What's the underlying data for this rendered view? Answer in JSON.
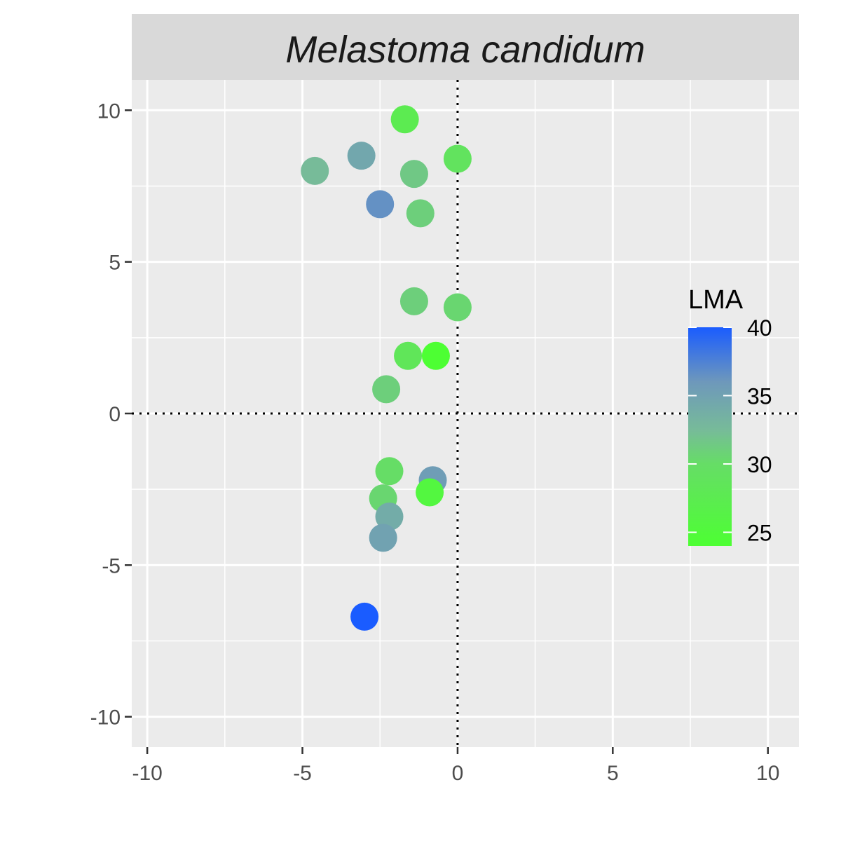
{
  "chart_data": {
    "type": "scatter",
    "title": "Melastoma candidum",
    "xlabel": "",
    "ylabel": "",
    "xlim": [
      -10.5,
      11
    ],
    "ylim": [
      -11,
      11
    ],
    "xticks": [
      -10,
      -5,
      0,
      5,
      10
    ],
    "yticks": [
      -10,
      -5,
      0,
      5,
      10
    ],
    "xtick_labels": [
      "-10",
      "-5",
      "0",
      "5",
      "10"
    ],
    "ytick_labels": [
      "-10",
      "-5",
      "0",
      "5",
      "10"
    ],
    "grid": true,
    "reference_lines": {
      "x": 0,
      "y": 0,
      "style": "dotted"
    },
    "color_variable": "LMA",
    "color_scale": {
      "low": 24,
      "high": 40,
      "low_color": "#4dff33",
      "mid_color": "#77bb99",
      "high_color": "#1a5cff",
      "breaks": [
        25,
        30,
        35,
        40
      ],
      "break_labels": [
        "25",
        "30",
        "35",
        "40"
      ]
    },
    "legend_position": "right",
    "points": [
      {
        "x": -1.7,
        "y": 9.7,
        "lma": 27.5
      },
      {
        "x": 0.0,
        "y": 8.4,
        "lma": 29.0
      },
      {
        "x": -3.1,
        "y": 8.5,
        "lma": 34.5
      },
      {
        "x": -4.6,
        "y": 8.0,
        "lma": 32.5
      },
      {
        "x": -1.4,
        "y": 7.9,
        "lma": 31.5
      },
      {
        "x": -2.5,
        "y": 6.9,
        "lma": 36.5
      },
      {
        "x": -1.2,
        "y": 6.6,
        "lma": 31.0
      },
      {
        "x": -1.4,
        "y": 3.7,
        "lma": 31.0
      },
      {
        "x": 0.0,
        "y": 3.5,
        "lma": 30.5
      },
      {
        "x": -1.6,
        "y": 1.9,
        "lma": 28.5
      },
      {
        "x": -0.7,
        "y": 1.9,
        "lma": 24.0
      },
      {
        "x": -2.3,
        "y": 0.8,
        "lma": 31.0
      },
      {
        "x": -2.2,
        "y": -1.9,
        "lma": 30.0
      },
      {
        "x": -0.8,
        "y": -2.2,
        "lma": 35.5
      },
      {
        "x": -0.9,
        "y": -2.6,
        "lma": 25.5
      },
      {
        "x": -2.4,
        "y": -2.8,
        "lma": 30.5
      },
      {
        "x": -2.2,
        "y": -3.4,
        "lma": 34.0
      },
      {
        "x": -2.4,
        "y": -4.1,
        "lma": 35.0
      },
      {
        "x": -3.0,
        "y": -6.7,
        "lma": 40.0
      }
    ]
  }
}
